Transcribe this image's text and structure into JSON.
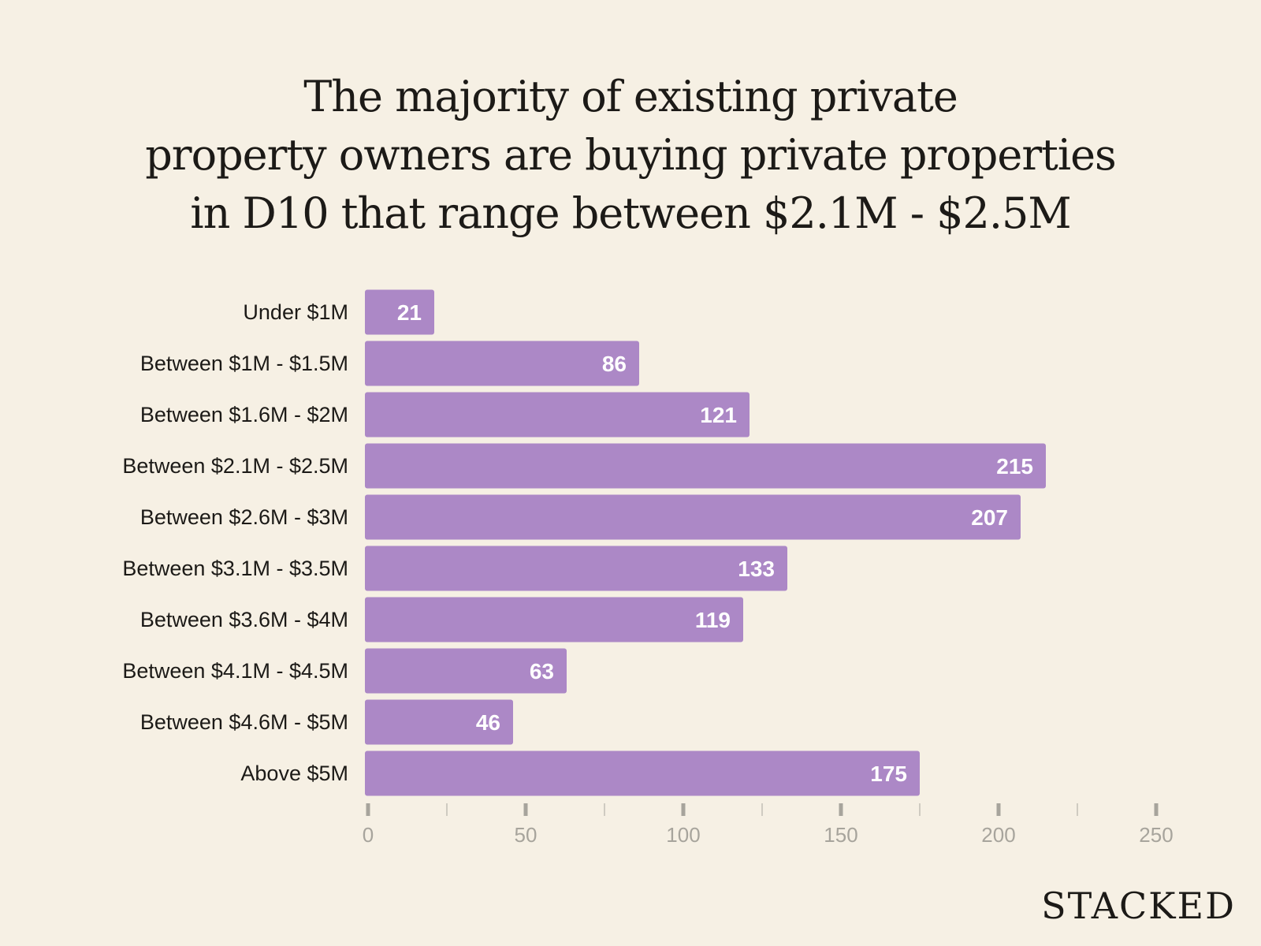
{
  "title_lines": [
    "The majority of existing private",
    "property owners are buying private properties",
    "in D10 that range between $2.1M - $2.5M"
  ],
  "brand": "STACKED",
  "colors": {
    "background": "#f6f0e4",
    "bar": "#ac88c6",
    "bar_label": "#ffffff",
    "category_label": "#1c1a17",
    "axis": "#a7a49c"
  },
  "chart_data": {
    "type": "bar",
    "orientation": "horizontal",
    "categories": [
      "Under $1M",
      "Between $1M - $1.5M",
      "Between $1.6M - $2M",
      "Between $2.1M - $2.5M",
      "Between $2.6M - $3M",
      "Between $3.1M - $3.5M",
      "Between $3.6M - $4M",
      "Between $4.1M - $4.5M",
      "Between $4.6M - $5M",
      "Above $5M"
    ],
    "values": [
      21,
      86,
      121,
      215,
      207,
      133,
      119,
      63,
      46,
      175
    ],
    "xlim": [
      0,
      250
    ],
    "x_ticks": [
      0,
      50,
      100,
      150,
      200,
      250
    ],
    "x_minor_ticks": [
      25,
      75,
      125,
      175,
      225
    ],
    "data_labels": true,
    "grid": false
  }
}
